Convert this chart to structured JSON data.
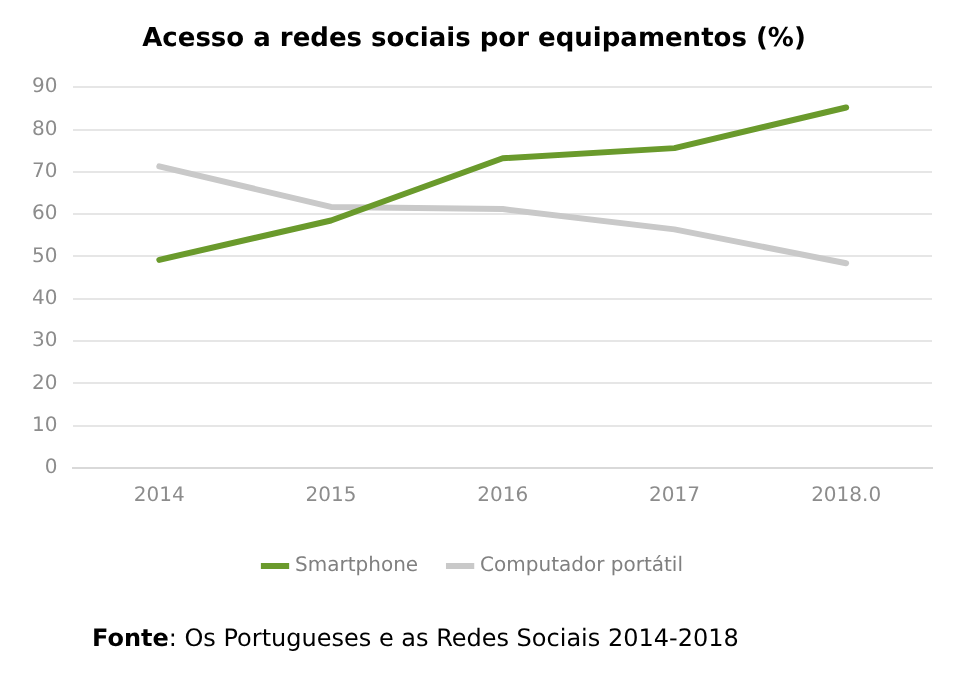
{
  "chart_data": {
    "type": "line",
    "title": "Acesso a redes sociais por equipamentos (%)",
    "categories": [
      "2014",
      "2015",
      "2016",
      "2017",
      "2018.0"
    ],
    "series": [
      {
        "name": "Smartphone",
        "color": "#6a9a2c",
        "values": [
          49.2,
          58.5,
          73.2,
          75.6,
          85.2
        ]
      },
      {
        "name": "Computador portátil",
        "color": "#c9c9c9",
        "values": [
          71.3,
          61.7,
          61.2,
          56.4,
          48.4
        ]
      }
    ],
    "ylim": [
      0,
      90
    ],
    "yticks": [
      0,
      10,
      20,
      30,
      40,
      50,
      60,
      70,
      80,
      90
    ],
    "grid": "y",
    "legend": "bottom",
    "marker": "none",
    "line_style": "solid",
    "annotations": [
      "Fonte: Os Portugueses e as Redes Sociais 2014-2018"
    ]
  }
}
